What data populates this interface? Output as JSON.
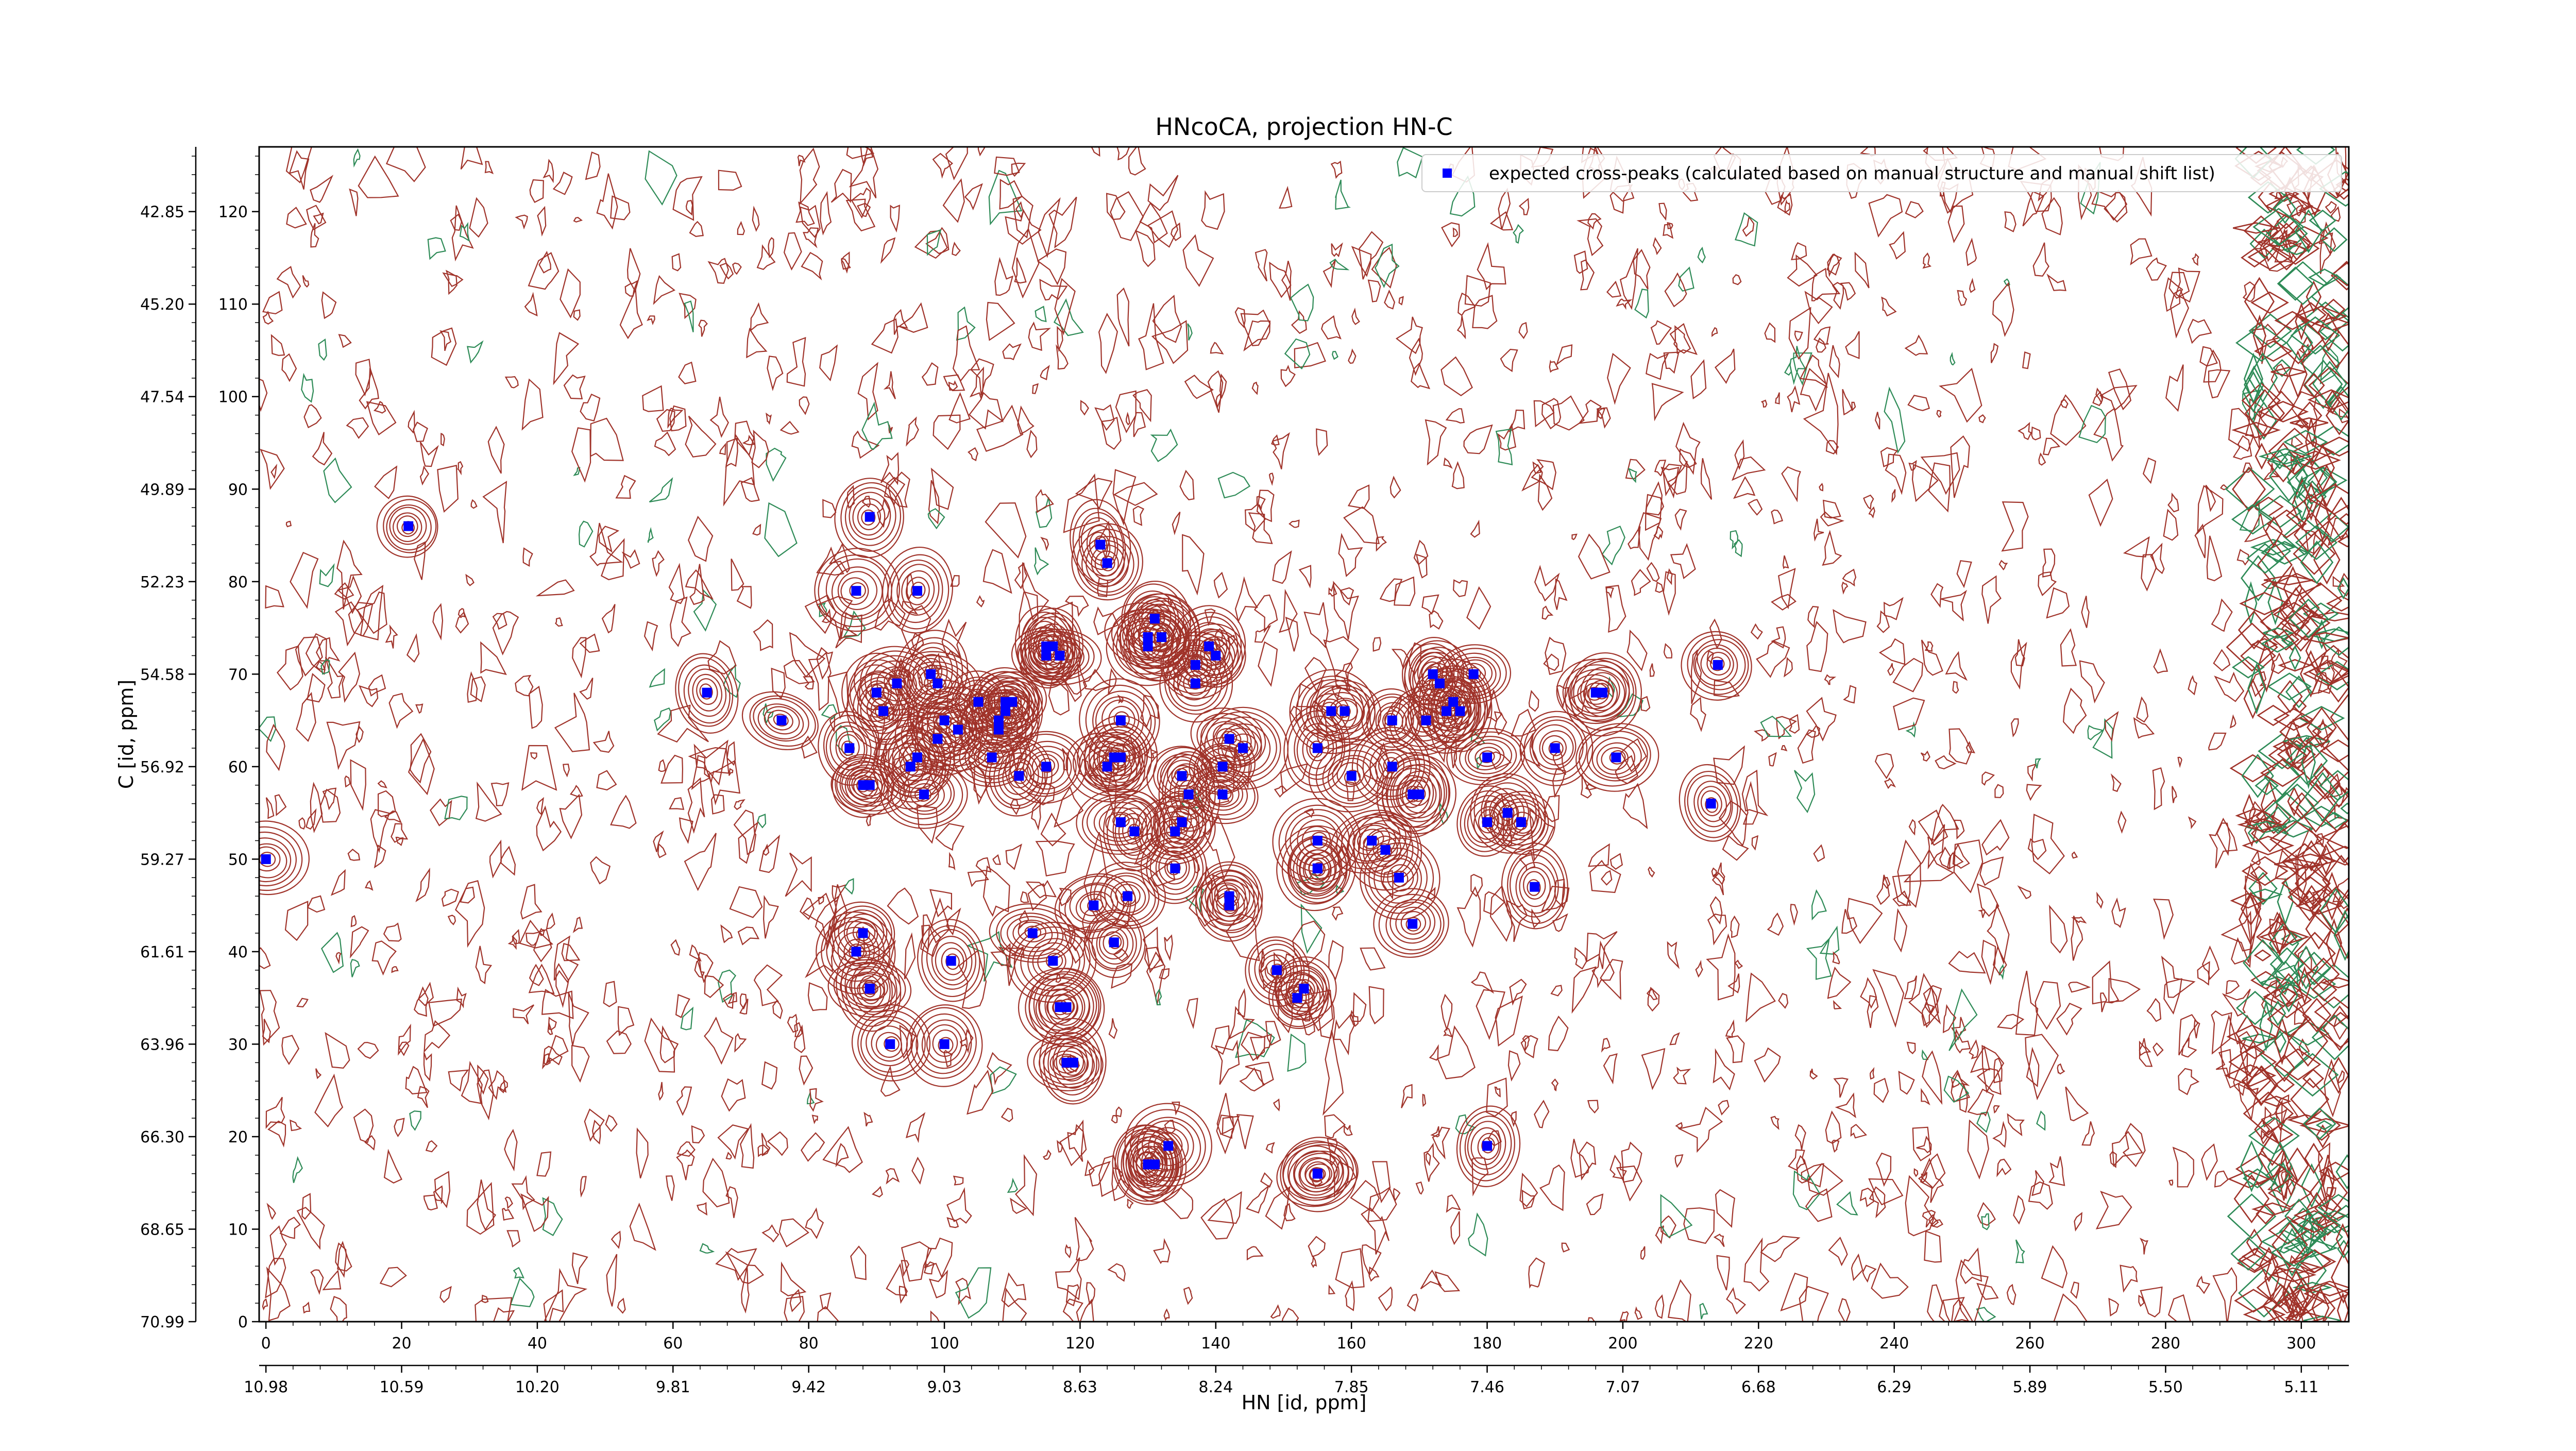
{
  "chart_data": {
    "type": "scatter",
    "title": "HNcoCA, projection HN-C",
    "xlabel": "HN [id, ppm]",
    "ylabel": "C [id, ppm]",
    "x_index_ticks": [
      "0",
      "20",
      "40",
      "60",
      "80",
      "100",
      "120",
      "140",
      "160",
      "180",
      "200",
      "220",
      "240",
      "260",
      "280",
      "300"
    ],
    "x_ppm_ticks": [
      "10.98",
      "10.59",
      "10.20",
      "9.81",
      "9.42",
      "9.03",
      "8.63",
      "8.24",
      "7.85",
      "7.46",
      "7.07",
      "6.68",
      "6.29",
      "5.89",
      "5.50",
      "5.11"
    ],
    "y_index_ticks": [
      "0",
      "10",
      "20",
      "30",
      "40",
      "50",
      "60",
      "70",
      "80",
      "90",
      "100",
      "110",
      "120"
    ],
    "y_ppm_ticks": [
      "70.99",
      "68.65",
      "66.30",
      "63.96",
      "61.61",
      "59.27",
      "56.92",
      "54.58",
      "52.23",
      "49.89",
      "47.54",
      "45.20",
      "42.85"
    ],
    "xlim": [
      -1,
      307
    ],
    "ylim": [
      0,
      127
    ],
    "grid": false,
    "legend": {
      "placement": "top-right",
      "entries": [
        {
          "label": "expected cross-peaks (calculated based on manual structure and manual shift list)",
          "color": "#0000ff",
          "marker": "x-square"
        }
      ]
    },
    "contour_colors": {
      "positive": "#a0332a",
      "negative": "#2e8b57"
    },
    "series": [
      {
        "name": "expected cross-peaks (calculated based on manual structure and manual shift list)",
        "x": [
          0,
          21,
          65,
          76,
          86,
          88,
          89,
          89,
          96,
          87,
          90,
          91,
          93,
          95,
          96,
          97,
          98,
          99,
          99,
          100,
          102,
          105,
          107,
          108,
          108,
          109,
          109,
          110,
          111,
          115,
          115,
          115,
          116,
          117,
          123,
          124,
          124,
          125,
          126,
          126,
          126,
          127,
          128,
          130,
          130,
          131,
          132,
          132,
          134,
          134,
          135,
          135,
          136,
          137,
          137,
          139,
          140,
          141,
          141,
          142,
          142,
          142,
          144,
          155,
          155,
          155,
          157,
          159,
          160,
          163,
          165,
          166,
          166,
          167,
          169,
          169,
          170,
          171,
          172,
          173,
          174,
          175,
          176,
          178,
          180,
          180,
          183,
          185,
          187,
          190,
          197,
          196,
          199,
          213,
          214,
          87,
          88,
          89,
          89,
          92,
          100,
          101,
          113,
          116,
          118,
          117,
          118,
          119,
          122,
          125,
          130,
          131,
          133,
          155,
          149,
          153,
          152,
          155,
          155,
          180,
          130
        ],
        "y": [
          50,
          86,
          68,
          65,
          62,
          58,
          58,
          87,
          79,
          79,
          68,
          66,
          69,
          60,
          61,
          57,
          70,
          69,
          63,
          65,
          64,
          67,
          61,
          64,
          65,
          66,
          67,
          67,
          59,
          60,
          72,
          73,
          73,
          72,
          84,
          82,
          60,
          61,
          65,
          61,
          54,
          46,
          53,
          73,
          74,
          76,
          74,
          74,
          53,
          49,
          59,
          54,
          57,
          69,
          71,
          73,
          72,
          60,
          57,
          46,
          45,
          63,
          62,
          62,
          52,
          49,
          66,
          66,
          59,
          52,
          51,
          60,
          65,
          48,
          43,
          57,
          57,
          65,
          70,
          69,
          66,
          67,
          66,
          70,
          61,
          54,
          55,
          54,
          47,
          62,
          68,
          68,
          61,
          56,
          71,
          40,
          42,
          36,
          36,
          30,
          30,
          39,
          42,
          39,
          34,
          34,
          28,
          28,
          45,
          41,
          17,
          17,
          19,
          49,
          38,
          36,
          35,
          16,
          16,
          19,
          17
        ]
      }
    ]
  }
}
